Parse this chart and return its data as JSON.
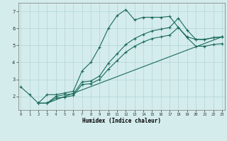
{
  "xlabel": "Humidex (Indice chaleur)",
  "bg_color": "#d4ecec",
  "grid_color": "#b8d8d8",
  "line_color": "#1a6b5a",
  "series": [
    {
      "x": [
        0,
        1,
        2,
        3,
        4,
        5,
        6,
        7,
        8,
        9,
        10,
        11,
        12,
        13,
        14,
        15,
        16,
        17,
        18,
        19,
        20,
        21,
        22,
        23
      ],
      "y": [
        2.55,
        2.1,
        1.6,
        2.1,
        2.1,
        2.2,
        2.3,
        3.5,
        4.0,
        4.9,
        6.0,
        6.75,
        7.1,
        6.5,
        6.65,
        6.65,
        6.65,
        6.7,
        6.05,
        5.5,
        5.35,
        5.35,
        5.45,
        5.5
      ]
    },
    {
      "x": [
        2,
        3,
        23
      ],
      "y": [
        1.6,
        1.6,
        5.5
      ]
    },
    {
      "x": [
        2,
        3,
        4,
        5,
        6,
        7,
        8,
        9,
        10,
        11,
        12,
        13,
        14,
        15,
        16,
        17,
        18,
        19,
        20,
        21,
        22,
        23
      ],
      "y": [
        1.6,
        1.6,
        2.0,
        2.1,
        2.15,
        2.85,
        2.9,
        3.2,
        3.95,
        4.5,
        5.05,
        5.4,
        5.65,
        5.85,
        5.95,
        6.05,
        6.6,
        5.9,
        5.35,
        5.35,
        5.45,
        5.5
      ]
    },
    {
      "x": [
        2,
        3,
        4,
        5,
        6,
        7,
        8,
        9,
        10,
        11,
        12,
        13,
        14,
        15,
        16,
        17,
        18,
        19,
        20,
        21,
        22,
        23
      ],
      "y": [
        1.6,
        1.6,
        1.9,
        1.95,
        2.05,
        2.7,
        2.75,
        3.0,
        3.6,
        4.1,
        4.6,
        4.95,
        5.2,
        5.4,
        5.5,
        5.6,
        6.05,
        5.45,
        4.95,
        4.95,
        5.05,
        5.1
      ]
    }
  ],
  "xlim": [
    -0.3,
    23.3
  ],
  "ylim": [
    1.2,
    7.5
  ],
  "yticks": [
    2,
    3,
    4,
    5,
    6,
    7
  ],
  "xticks": [
    0,
    1,
    2,
    3,
    4,
    5,
    6,
    7,
    8,
    9,
    10,
    11,
    12,
    13,
    14,
    15,
    16,
    17,
    18,
    19,
    20,
    21,
    22,
    23
  ]
}
